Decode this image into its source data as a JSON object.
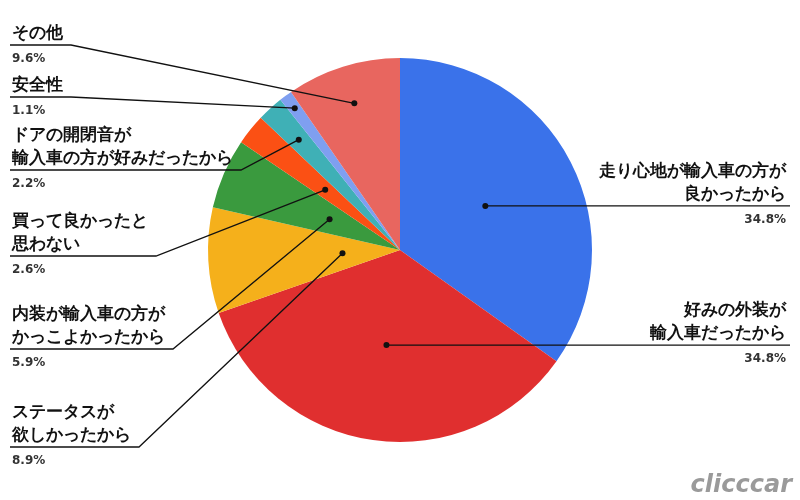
{
  "chart_data": {
    "type": "pie",
    "categories": [
      [
        "走り心地が輸入車の方が",
        "良かったから"
      ],
      [
        "好みの外装が",
        "輸入車だったから"
      ],
      [
        "ステータスが",
        "欲しかったから"
      ],
      [
        "内装が輸入車の方が",
        "かっこよかったから"
      ],
      [
        "買って良かったと",
        "思わない"
      ],
      [
        "ドアの開閉音が",
        "輸入車の方が好みだったから"
      ],
      [
        "安全性"
      ],
      [
        "その他"
      ]
    ],
    "values": [
      34.8,
      34.8,
      8.9,
      5.9,
      2.6,
      2.2,
      1.1,
      9.6
    ],
    "value_labels": [
      "34.8%",
      "34.8%",
      "8.9%",
      "5.9%",
      "2.6%",
      "2.2%",
      "1.1%",
      "9.6%"
    ],
    "colors": [
      "#3a72ea",
      "#e02f2f",
      "#f5b01b",
      "#3a9a3e",
      "#fb5014",
      "#3fb0b6",
      "#7f9ff0",
      "#e8665f"
    ],
    "data_labels": true,
    "watermark": "clicccar"
  }
}
